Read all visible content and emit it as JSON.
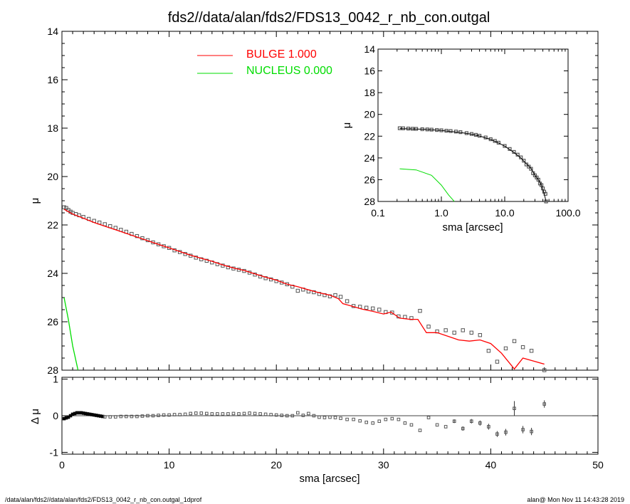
{
  "footer": {
    "left": "/data/alan/fds2//data/alan/fds2/FDS13_0042_r_nb_con.outgal_1dprof",
    "right": "alan@  Mon Nov 11 14:43:28 2019"
  },
  "chart_data": [
    {
      "type": "scatter",
      "title": "fds2//data/alan/fds2/FDS13_0042_r_nb_con.outgal",
      "xlabel": "",
      "ylabel": "μ",
      "xlim": [
        0,
        50
      ],
      "ylim": [
        28,
        14
      ],
      "y_reversed": true,
      "yticks": [
        14,
        16,
        18,
        20,
        22,
        24,
        26,
        28
      ],
      "xticks": [
        0,
        10,
        20,
        30,
        40,
        50
      ],
      "grid": false,
      "legend_position": "top-center",
      "legend": [
        {
          "name": "BULGE  1.000",
          "color": "#ff0000"
        },
        {
          "name": "NUCLEUS  0.000",
          "color": "#00dd00"
        }
      ],
      "series": [
        {
          "name": "data",
          "style": "open-square",
          "color": "#555555",
          "x": [
            0.2,
            0.4,
            0.6,
            0.8,
            1.0,
            1.3,
            1.6,
            2.0,
            2.5,
            3.0,
            3.5,
            4.0,
            4.5,
            5.0,
            5.5,
            6.0,
            6.5,
            7.0,
            7.5,
            8.0,
            8.5,
            9.0,
            9.5,
            10.0,
            10.5,
            11.0,
            11.5,
            12.0,
            12.5,
            13.0,
            13.5,
            14.0,
            14.5,
            15.0,
            15.5,
            16.0,
            16.5,
            17.0,
            17.5,
            18.0,
            18.5,
            19.0,
            19.5,
            20.0,
            20.5,
            21.0,
            21.5,
            22.0,
            22.5,
            23.0,
            23.5,
            24.0,
            24.5,
            25.0,
            25.5,
            26.0,
            26.6,
            27.2,
            27.8,
            28.4,
            29.0,
            29.6,
            30.2,
            30.8,
            31.4,
            32.0,
            32.6,
            33.4,
            34.2,
            35.0,
            35.8,
            36.6,
            37.4,
            38.2,
            39.0,
            39.8,
            40.6,
            41.4,
            42.2,
            43.0,
            43.8,
            45.0
          ],
          "y": [
            21.27,
            21.3,
            21.38,
            21.45,
            21.5,
            21.55,
            21.6,
            21.67,
            21.75,
            21.83,
            21.9,
            21.97,
            22.05,
            22.12,
            22.2,
            22.28,
            22.37,
            22.46,
            22.55,
            22.63,
            22.72,
            22.8,
            22.88,
            22.95,
            23.05,
            23.12,
            23.2,
            23.27,
            23.35,
            23.42,
            23.48,
            23.55,
            23.62,
            23.68,
            23.75,
            23.8,
            23.85,
            23.9,
            23.97,
            24.05,
            24.13,
            24.2,
            24.25,
            24.32,
            24.38,
            24.45,
            24.55,
            24.72,
            24.67,
            24.75,
            24.78,
            24.85,
            24.9,
            24.95,
            24.9,
            24.97,
            25.15,
            25.35,
            25.38,
            25.42,
            25.45,
            25.5,
            25.6,
            25.62,
            25.78,
            25.8,
            25.85,
            25.55,
            26.2,
            26.4,
            26.35,
            26.45,
            26.35,
            26.45,
            26.55,
            27.2,
            27.65,
            27.1,
            26.8,
            27.05,
            27.2,
            28.0
          ]
        },
        {
          "name": "BULGE  1.000",
          "style": "line",
          "color": "#ff0000",
          "x": [
            0.2,
            1,
            2,
            3,
            4,
            5,
            6,
            7,
            8,
            9,
            10,
            11,
            12,
            13,
            14,
            15,
            16,
            17,
            18,
            19,
            20,
            21,
            22,
            23,
            24,
            25,
            25.8,
            26.2,
            27,
            28,
            29,
            30,
            30.7,
            31.5,
            32.5,
            33.2,
            34,
            35,
            36,
            37,
            38,
            39,
            40,
            41,
            42.2,
            43,
            45
          ],
          "y": [
            21.35,
            21.55,
            21.72,
            21.9,
            22.05,
            22.2,
            22.35,
            22.5,
            22.65,
            22.8,
            22.95,
            23.1,
            23.25,
            23.38,
            23.5,
            23.65,
            23.78,
            23.88,
            24.02,
            24.16,
            24.28,
            24.45,
            24.55,
            24.68,
            24.8,
            24.9,
            25.05,
            25.25,
            25.35,
            25.48,
            25.57,
            25.68,
            25.6,
            25.85,
            25.9,
            25.9,
            26.45,
            26.45,
            26.6,
            26.75,
            26.8,
            26.75,
            26.9,
            27.3,
            27.95,
            27.5,
            27.75
          ]
        },
        {
          "name": "NUCLEUS  0.000",
          "style": "line",
          "color": "#00dd00",
          "x": [
            0.2,
            0.6,
            1.0,
            1.5
          ],
          "y": [
            25.0,
            25.9,
            27.0,
            28.0
          ]
        }
      ]
    },
    {
      "type": "scatter",
      "xlabel": "sma [arcsec]",
      "ylabel": "Δ μ",
      "xlim": [
        0,
        50
      ],
      "ylim": [
        -1.05,
        1.05
      ],
      "yticks": [
        1,
        0,
        -1
      ],
      "xticks": [
        0,
        10,
        20,
        30,
        40,
        50
      ],
      "zero_line": true,
      "series": [
        {
          "name": "residual",
          "style": "open-square-errorbar",
          "color": "#555555",
          "x": [
            0.2,
            0.4,
            0.6,
            0.8,
            1.0,
            1.2,
            1.4,
            1.6,
            1.8,
            2.0,
            2.2,
            2.4,
            2.6,
            2.8,
            3.0,
            3.2,
            3.4,
            3.6,
            3.8,
            4.0,
            4.5,
            5,
            5.5,
            6,
            6.5,
            7,
            7.5,
            8,
            8.5,
            9,
            9.5,
            10,
            10.5,
            11,
            11.5,
            12,
            12.5,
            13,
            13.5,
            14,
            14.5,
            15,
            15.5,
            16,
            16.5,
            17,
            17.5,
            18,
            18.5,
            19,
            19.5,
            20,
            20.5,
            21,
            21.5,
            22,
            22.5,
            23,
            23.5,
            24,
            24.5,
            25,
            25.5,
            26,
            26.6,
            27.2,
            27.8,
            28.4,
            29.0,
            29.6,
            30.2,
            30.8,
            31.4,
            32.0,
            32.6,
            33.4,
            34.2,
            35.0,
            35.8,
            36.6,
            37.4,
            38.2,
            39.0,
            39.8,
            40.6,
            41.4,
            42.2,
            43.0,
            43.8,
            45.0
          ],
          "y": [
            -0.08,
            -0.06,
            -0.04,
            0.0,
            0.04,
            0.06,
            0.08,
            0.08,
            0.08,
            0.07,
            0.06,
            0.05,
            0.04,
            0.03,
            0.02,
            0.01,
            0.0,
            -0.01,
            -0.02,
            -0.03,
            -0.03,
            -0.03,
            -0.02,
            -0.02,
            -0.02,
            -0.02,
            -0.01,
            0.0,
            0.0,
            0.01,
            0.02,
            0.02,
            0.03,
            0.03,
            0.04,
            0.06,
            0.07,
            0.07,
            0.06,
            0.05,
            0.05,
            0.05,
            0.05,
            0.06,
            0.05,
            0.06,
            0.07,
            0.06,
            0.05,
            0.04,
            0.03,
            0.02,
            0.01,
            0.0,
            0.0,
            0.08,
            0.01,
            0.06,
            0.0,
            -0.04,
            -0.05,
            -0.04,
            -0.05,
            -0.07,
            -0.1,
            -0.1,
            -0.14,
            -0.18,
            -0.2,
            -0.15,
            -0.1,
            -0.08,
            -0.1,
            -0.2,
            -0.25,
            -0.4,
            -0.05,
            -0.25,
            -0.3,
            -0.15,
            -0.35,
            -0.15,
            -0.2,
            -0.3,
            -0.5,
            -0.45,
            0.2,
            -0.38,
            -0.43,
            0.32
          ],
          "err": [
            0.02,
            0.02,
            0.02,
            0.02,
            0.02,
            0.02,
            0.02,
            0.02,
            0.02,
            0.02,
            0.02,
            0.02,
            0.02,
            0.02,
            0.02,
            0.02,
            0.02,
            0.02,
            0.02,
            0.02,
            0.02,
            0.02,
            0.02,
            0.02,
            0.02,
            0.02,
            0.02,
            0.02,
            0.02,
            0.02,
            0.02,
            0.02,
            0.02,
            0.02,
            0.02,
            0.02,
            0.02,
            0.02,
            0.02,
            0.02,
            0.02,
            0.02,
            0.02,
            0.02,
            0.02,
            0.02,
            0.02,
            0.02,
            0.02,
            0.02,
            0.02,
            0.02,
            0.02,
            0.02,
            0.02,
            0.02,
            0.02,
            0.02,
            0.02,
            0.02,
            0.02,
            0.02,
            0.02,
            0.02,
            0.02,
            0.02,
            0.02,
            0.02,
            0.02,
            0.02,
            0.02,
            0.02,
            0.02,
            0.02,
            0.02,
            0.03,
            0.03,
            0.04,
            0.04,
            0.05,
            0.06,
            0.06,
            0.07,
            0.08,
            0.08,
            0.09,
            0.2,
            0.1,
            0.1,
            0.1
          ]
        }
      ]
    },
    {
      "type": "scatter",
      "xlabel": "sma [arcsec]",
      "ylabel": "μ",
      "x_scale": "log",
      "xlim": [
        0.1,
        100
      ],
      "ylim": [
        28,
        14
      ],
      "y_reversed": true,
      "yticks": [
        14,
        16,
        18,
        20,
        22,
        24,
        26,
        28
      ],
      "xtick_labels": [
        "0.1",
        "1.0",
        "10.0",
        "100.0"
      ],
      "xtick_values": [
        0.1,
        1,
        10,
        100
      ],
      "series": [
        {
          "name": "data",
          "style": "open-square",
          "color": "#555555",
          "x": [
            0.22,
            0.25,
            0.3,
            0.35,
            0.4,
            0.5,
            0.6,
            0.7,
            0.85,
            1.0,
            1.2,
            1.4,
            1.7,
            2.0,
            2.5,
            3.0,
            3.5,
            4.0,
            5.0,
            6.0,
            7.0,
            8.0,
            10.0,
            12.0,
            14.0,
            16.0,
            18.0,
            20.0,
            22.0,
            24.0,
            26.0,
            28.0,
            30.0,
            32.0,
            34.0,
            36.0,
            38.0,
            40.0,
            42.0,
            44.0,
            45.0
          ],
          "y": [
            21.27,
            21.28,
            21.3,
            21.32,
            21.33,
            21.36,
            21.38,
            21.4,
            21.43,
            21.46,
            21.5,
            21.53,
            21.58,
            21.63,
            21.72,
            21.8,
            21.88,
            21.96,
            22.12,
            22.28,
            22.44,
            22.6,
            22.9,
            23.18,
            23.45,
            23.7,
            23.95,
            24.25,
            24.6,
            24.8,
            25.0,
            25.4,
            25.6,
            25.8,
            26.0,
            26.35,
            26.5,
            26.8,
            27.1,
            27.3,
            28.0
          ]
        },
        {
          "name": "model",
          "style": "line",
          "color": "#000000",
          "x": [
            0.22,
            0.5,
            1,
            2,
            3,
            4,
            6,
            8,
            10,
            14,
            18,
            22,
            26,
            30,
            34,
            38,
            42,
            45
          ],
          "y": [
            21.3,
            21.36,
            21.48,
            21.66,
            21.82,
            21.98,
            22.3,
            22.62,
            22.92,
            23.5,
            24.0,
            24.55,
            24.95,
            25.6,
            26.0,
            26.5,
            27.3,
            28.0
          ]
        },
        {
          "name": "NUCLEUS  0.000",
          "style": "line",
          "color": "#00dd00",
          "x": [
            0.22,
            0.4,
            0.7,
            1.0,
            1.3,
            1.6
          ],
          "y": [
            25.0,
            25.1,
            25.6,
            26.5,
            27.4,
            28.2
          ]
        }
      ]
    }
  ]
}
